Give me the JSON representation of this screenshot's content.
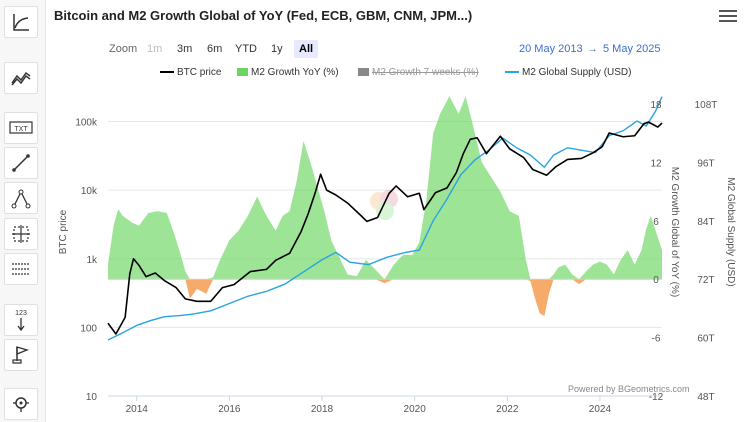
{
  "title": "Bitcoin and M2 Growth Global of YoY (Fed, ECB, GBM, CNM, JPM...)",
  "zoom": {
    "label": "Zoom",
    "buttons": [
      {
        "label": "1m",
        "state": "disabled"
      },
      {
        "label": "3m",
        "state": "normal"
      },
      {
        "label": "6m",
        "state": "normal"
      },
      {
        "label": "YTD",
        "state": "normal"
      },
      {
        "label": "1y",
        "state": "normal"
      },
      {
        "label": "All",
        "state": "active"
      }
    ]
  },
  "range": {
    "from": "20 May 2013",
    "arrow": "→",
    "to": "5 May 2025"
  },
  "legend": [
    {
      "label": "BTC price",
      "color": "#000000",
      "kind": "line",
      "visible": true
    },
    {
      "label": "M2 Growth YoY (%)",
      "color": "#6ad65f",
      "kind": "box",
      "visible": true
    },
    {
      "label": "M2 Growth 7 weeks (%)",
      "color": "#888888",
      "kind": "box",
      "visible": false
    },
    {
      "label": "M2 Global Supply (USD)",
      "color": "#2aa3e0",
      "kind": "line",
      "visible": true
    }
  ],
  "credit": "Powered by BGeometrics.com",
  "toolbar": {
    "icons": [
      "trend-line-icon",
      "indicators-icon",
      "text-annotation-icon",
      "line-draw-icon",
      "fibonacci-icon",
      "crosshair-measure-icon",
      "horizontal-lines-icon",
      "vertical-counter-icon",
      "flag-icon",
      "zoom-search-icon"
    ],
    "text_icon_label": "TXT",
    "counter_label": "123"
  },
  "colors": {
    "btc": "#000000",
    "m2_positive": "#6ad65f",
    "m2_negative": "#f5a25b",
    "m2_supply": "#2aa3e0"
  },
  "chart_data": {
    "type": "line",
    "x_axis": {
      "ticks": [
        "2014",
        "2016",
        "2018",
        "2020",
        "2022",
        "2024"
      ],
      "range": [
        2013.38,
        2025.34
      ]
    },
    "y_axes": [
      {
        "id": "btc",
        "label": "BTC price",
        "scale": "log",
        "ticks": [
          "10",
          "100",
          "1k",
          "10k",
          "100k"
        ],
        "range": [
          10,
          180000
        ]
      },
      {
        "id": "m2yoy",
        "label": "M2 Growth Global of YoY (%)",
        "ticks": [
          "-12",
          "-6",
          "0",
          "6",
          "12",
          "18"
        ],
        "range": [
          -12,
          18
        ]
      },
      {
        "id": "m2supply",
        "label": "M2 Global Supply (USD)",
        "ticks": [
          "48T",
          "60T",
          "72T",
          "84T",
          "96T",
          "108T"
        ],
        "range": [
          48,
          108
        ]
      }
    ],
    "series": [
      {
        "name": "BTC price",
        "axis": "btc",
        "type": "line",
        "color": "#000000",
        "x": [
          2013.38,
          2013.55,
          2013.75,
          2013.85,
          2013.93,
          2014.05,
          2014.2,
          2014.4,
          2014.6,
          2014.85,
          2015.05,
          2015.3,
          2015.6,
          2015.85,
          2016.1,
          2016.45,
          2016.8,
          2017.0,
          2017.3,
          2017.55,
          2017.7,
          2017.85,
          2017.97,
          2018.1,
          2018.3,
          2018.55,
          2018.85,
          2018.97,
          2019.2,
          2019.45,
          2019.6,
          2019.85,
          2020.1,
          2020.2,
          2020.45,
          2020.7,
          2020.9,
          2021.05,
          2021.2,
          2021.35,
          2021.55,
          2021.85,
          2022.05,
          2022.35,
          2022.55,
          2022.85,
          2023.05,
          2023.3,
          2023.6,
          2023.85,
          2024.05,
          2024.2,
          2024.5,
          2024.75,
          2024.95,
          2025.05,
          2025.25,
          2025.34
        ],
        "y": [
          115,
          80,
          140,
          600,
          1000,
          800,
          550,
          620,
          480,
          380,
          260,
          240,
          240,
          380,
          420,
          650,
          700,
          950,
          1200,
          2500,
          4500,
          9000,
          17000,
          10000,
          8500,
          6500,
          4200,
          3500,
          4000,
          9000,
          11500,
          8000,
          9000,
          5200,
          9200,
          10800,
          18000,
          34000,
          55000,
          58000,
          34000,
          61000,
          40000,
          30000,
          20000,
          16500,
          22000,
          28000,
          29000,
          35000,
          43000,
          68000,
          60000,
          62000,
          93000,
          98000,
          83000,
          95000
        ]
      },
      {
        "name": "M2 Growth YoY (%)",
        "axis": "m2yoy",
        "type": "area",
        "color": "#6ad65f",
        "negative_color": "#f5a25b",
        "x": [
          2013.38,
          2013.5,
          2013.6,
          2013.7,
          2013.9,
          2014.05,
          2014.25,
          2014.45,
          2014.65,
          2014.8,
          2014.95,
          2015.05,
          2015.15,
          2015.3,
          2015.5,
          2015.65,
          2015.8,
          2016.0,
          2016.2,
          2016.4,
          2016.6,
          2016.8,
          2017.0,
          2017.15,
          2017.3,
          2017.45,
          2017.6,
          2017.75,
          2017.9,
          2018.05,
          2018.2,
          2018.35,
          2018.55,
          2018.75,
          2018.95,
          2019.15,
          2019.35,
          2019.55,
          2019.75,
          2019.95,
          2020.1,
          2020.25,
          2020.4,
          2020.55,
          2020.75,
          2020.95,
          2021.1,
          2021.25,
          2021.45,
          2021.65,
          2021.85,
          2022.05,
          2022.25,
          2022.4,
          2022.5,
          2022.6,
          2022.7,
          2022.8,
          2022.9,
          2023.0,
          2023.1,
          2023.25,
          2023.4,
          2023.55,
          2023.7,
          2023.85,
          2024.0,
          2024.15,
          2024.3,
          2024.45,
          2024.6,
          2024.75,
          2024.9,
          2025.0,
          2025.1,
          2025.2,
          2025.34
        ],
        "y": [
          1.5,
          5.5,
          7.2,
          6.5,
          5.8,
          5.5,
          6.8,
          7.0,
          6.8,
          4.8,
          2.5,
          0.8,
          -2.0,
          -1.0,
          -1.5,
          0.2,
          2.0,
          4.0,
          5.0,
          6.5,
          8.5,
          6.5,
          5.0,
          6.5,
          7.0,
          10.0,
          14.2,
          12.0,
          9.5,
          7.0,
          4.0,
          2.5,
          0.5,
          0.3,
          2.0,
          1.0,
          -0.4,
          1.5,
          2.5,
          2.5,
          3.8,
          8.0,
          15.0,
          17.0,
          18.8,
          17.0,
          18.8,
          16.0,
          12.0,
          10.5,
          9.0,
          7.0,
          6.5,
          2.0,
          -0.2,
          -2.0,
          -3.5,
          -3.8,
          -1.5,
          0.5,
          1.2,
          1.5,
          0.5,
          -0.5,
          0.8,
          1.5,
          1.8,
          1.5,
          0.5,
          2.0,
          3.0,
          1.5,
          3.0,
          5.2,
          6.5,
          5.0,
          3.0
        ]
      },
      {
        "name": "M2 Global Supply (USD)",
        "axis": "m2supply",
        "type": "line",
        "color": "#2aa3e0",
        "x": [
          2013.38,
          2013.7,
          2014.0,
          2014.3,
          2014.6,
          2014.9,
          2015.2,
          2015.6,
          2016.0,
          2016.4,
          2016.8,
          2017.2,
          2017.6,
          2018.0,
          2018.3,
          2018.6,
          2019.0,
          2019.4,
          2019.8,
          2020.1,
          2020.4,
          2020.7,
          2021.0,
          2021.3,
          2021.6,
          2021.9,
          2022.2,
          2022.5,
          2022.8,
          2023.0,
          2023.3,
          2023.6,
          2023.9,
          2024.2,
          2024.5,
          2024.8,
          2025.0,
          2025.2,
          2025.34
        ],
        "y": [
          59.5,
          61.0,
          62.5,
          63.5,
          64.3,
          64.5,
          64.8,
          65.5,
          67.0,
          68.5,
          69.5,
          71.0,
          73.5,
          76.0,
          77.5,
          75.5,
          75.0,
          76.5,
          77.5,
          78.0,
          84.0,
          88.5,
          93.5,
          96.5,
          98.5,
          101.0,
          99.0,
          97.5,
          95.0,
          97.5,
          99.0,
          98.5,
          98.0,
          101.5,
          102.5,
          104.5,
          103.5,
          106.5,
          109.5
        ]
      }
    ]
  }
}
